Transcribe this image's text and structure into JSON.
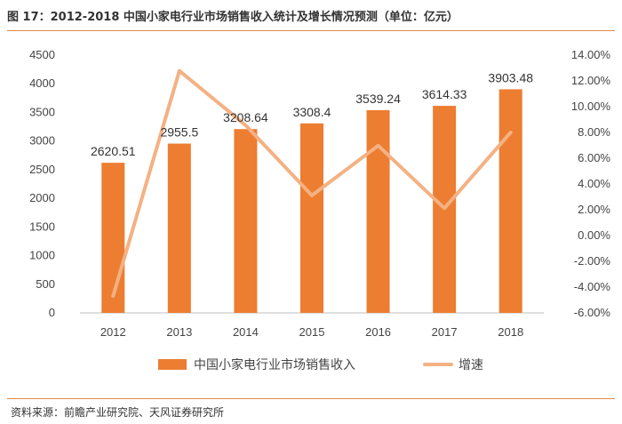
{
  "header": {
    "title": "图 17：2012-2018 中国小家电行业市场销售收入统计及增长情况预测（单位：亿元）",
    "source": "资料来源：前瞻产业研究院、天风证券研究所"
  },
  "chart_data": {
    "type": "bar",
    "categories": [
      "2012",
      "2013",
      "2014",
      "2015",
      "2016",
      "2017",
      "2018"
    ],
    "series": [
      {
        "name": "中国小家电行业市场销售收入",
        "type": "bar",
        "axis": "left",
        "color": "#ed7d31",
        "values": [
          2620.51,
          2955.5,
          3208.64,
          3308.4,
          3539.24,
          3614.33,
          3903.48
        ],
        "labels": [
          "2620.51",
          "2955.5",
          "3208.64",
          "3308.4",
          "3539.24",
          "3614.33",
          "3903.48"
        ]
      },
      {
        "name": "增速",
        "type": "line",
        "axis": "right",
        "color": "#f4b183",
        "values": [
          -4.7,
          12.78,
          8.56,
          3.11,
          6.98,
          2.12,
          8.0
        ]
      }
    ],
    "y_left": {
      "min": 0,
      "max": 4500,
      "ticks": [
        0,
        500,
        1000,
        1500,
        2000,
        2500,
        3000,
        3500,
        4000,
        4500
      ],
      "tick_labels": [
        "0",
        "500",
        "1000",
        "1500",
        "2000",
        "2500",
        "3000",
        "3500",
        "4000",
        "4500"
      ]
    },
    "y_right": {
      "min": -6,
      "max": 14,
      "ticks": [
        -6,
        -4,
        -2,
        0,
        2,
        4,
        6,
        8,
        10,
        12,
        14
      ],
      "tick_labels": [
        "-6.00%",
        "-4.00%",
        "-2.00%",
        "0.00%",
        "2.00%",
        "4.00%",
        "6.00%",
        "8.00%",
        "10.00%",
        "12.00%",
        "14.00%"
      ]
    },
    "legend": {
      "position": "bottom",
      "items": [
        "中国小家电行业市场销售收入",
        "增速"
      ]
    }
  }
}
